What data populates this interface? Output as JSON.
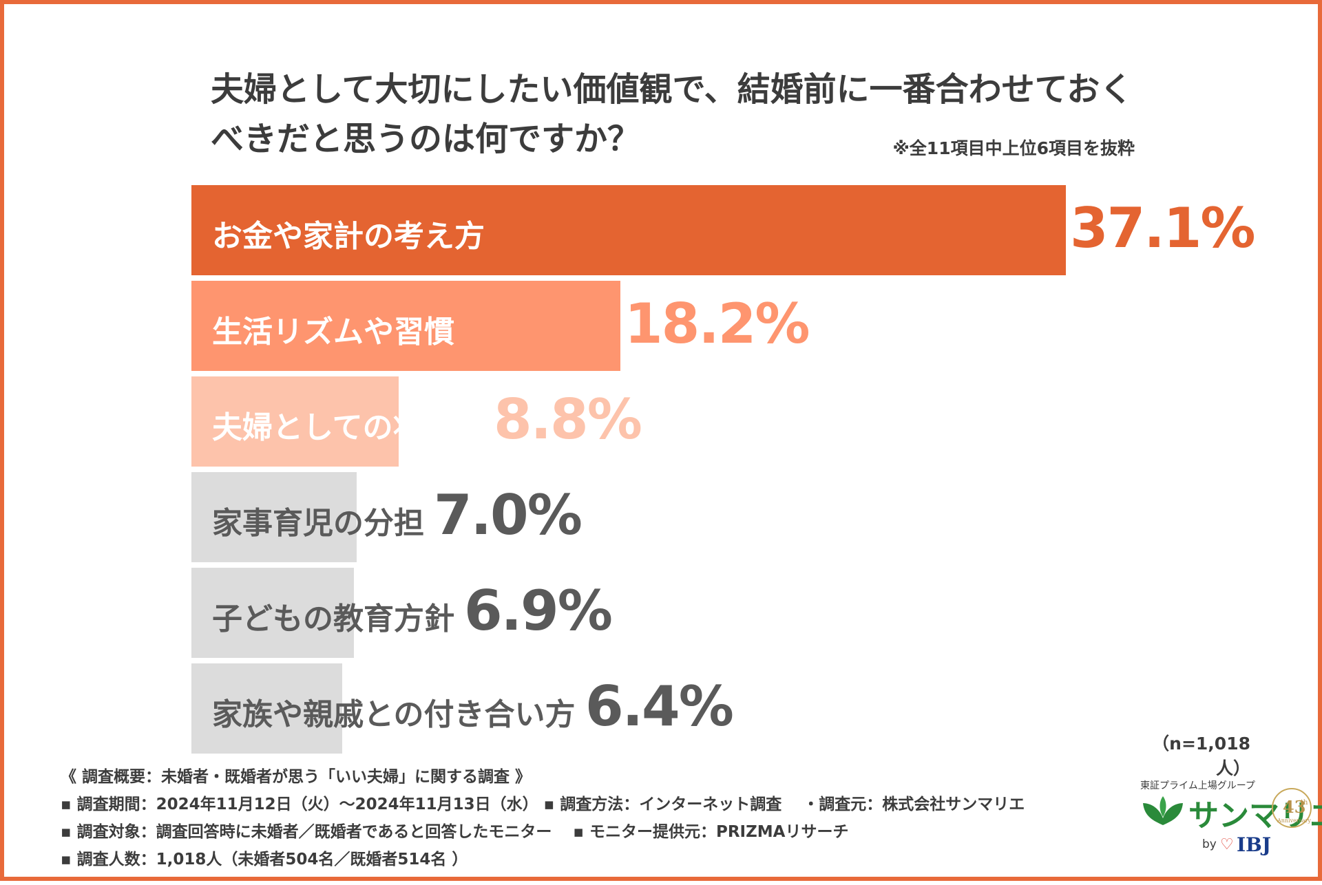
{
  "title_line1": "夫婦として大切にしたい価値観で、結婚前に一番合わせておく",
  "title_line2": "べきだと思うのは何ですか？",
  "note": "※全11項目中上位6項目を抜粋",
  "n_label": "（n=1,018人）",
  "survey": {
    "heading": "《 調査概要：未婚者・既婚者が思う「いい夫婦」に関する調査 》",
    "period": "▪ 調査期間：2024年11月12日（火）～2024年11月13日（水）  ▪ 調査方法：インターネット調査　 ・調査元：株式会社サンマリエ",
    "target": "▪ 調査対象：調査回答時に未婚者／既婚者であると回答したモニター　 ▪ モニター提供元：PRIZMAリサーチ",
    "count": "▪ 調査人数：1,018人（未婚者504名／既婚者514名 ）"
  },
  "logo": {
    "tagline": "東証プライム上場グループ",
    "brand": "サンマリエ",
    "by": "by",
    "ibj": "IBJ",
    "anniversary_number": "43",
    "anniversary_suffix": "th",
    "anniversary_word": "Anniversary"
  },
  "chart_data": {
    "type": "bar",
    "orientation": "horizontal",
    "categories": [
      "お金や家計の考え方",
      "生活リズムや習慣",
      "夫婦としての将来像",
      "家事育児の分担",
      "子どもの教育方針",
      "家族や親戚との付き合い方"
    ],
    "values": [
      37.1,
      18.2,
      8.8,
      7.0,
      6.9,
      6.4
    ],
    "value_labels": [
      "37.1%",
      "18.2%",
      "8.8%",
      "7.0%",
      "6.9%",
      "6.4%"
    ],
    "unit": "%",
    "bar_colors": [
      "#e46431",
      "#fe956f",
      "#fdc3ab",
      "#dcdcdc",
      "#dcdcdc",
      "#dcdcdc"
    ],
    "label_colors": [
      "#ffffff",
      "#ffffff",
      "#ffffff",
      "#5a5a5a",
      "#5a5a5a",
      "#5a5a5a"
    ],
    "value_colors": [
      "#e46431",
      "#fe956f",
      "#fdc3ab",
      "#5a5a5a",
      "#5a5a5a",
      "#5a5a5a"
    ]
  }
}
